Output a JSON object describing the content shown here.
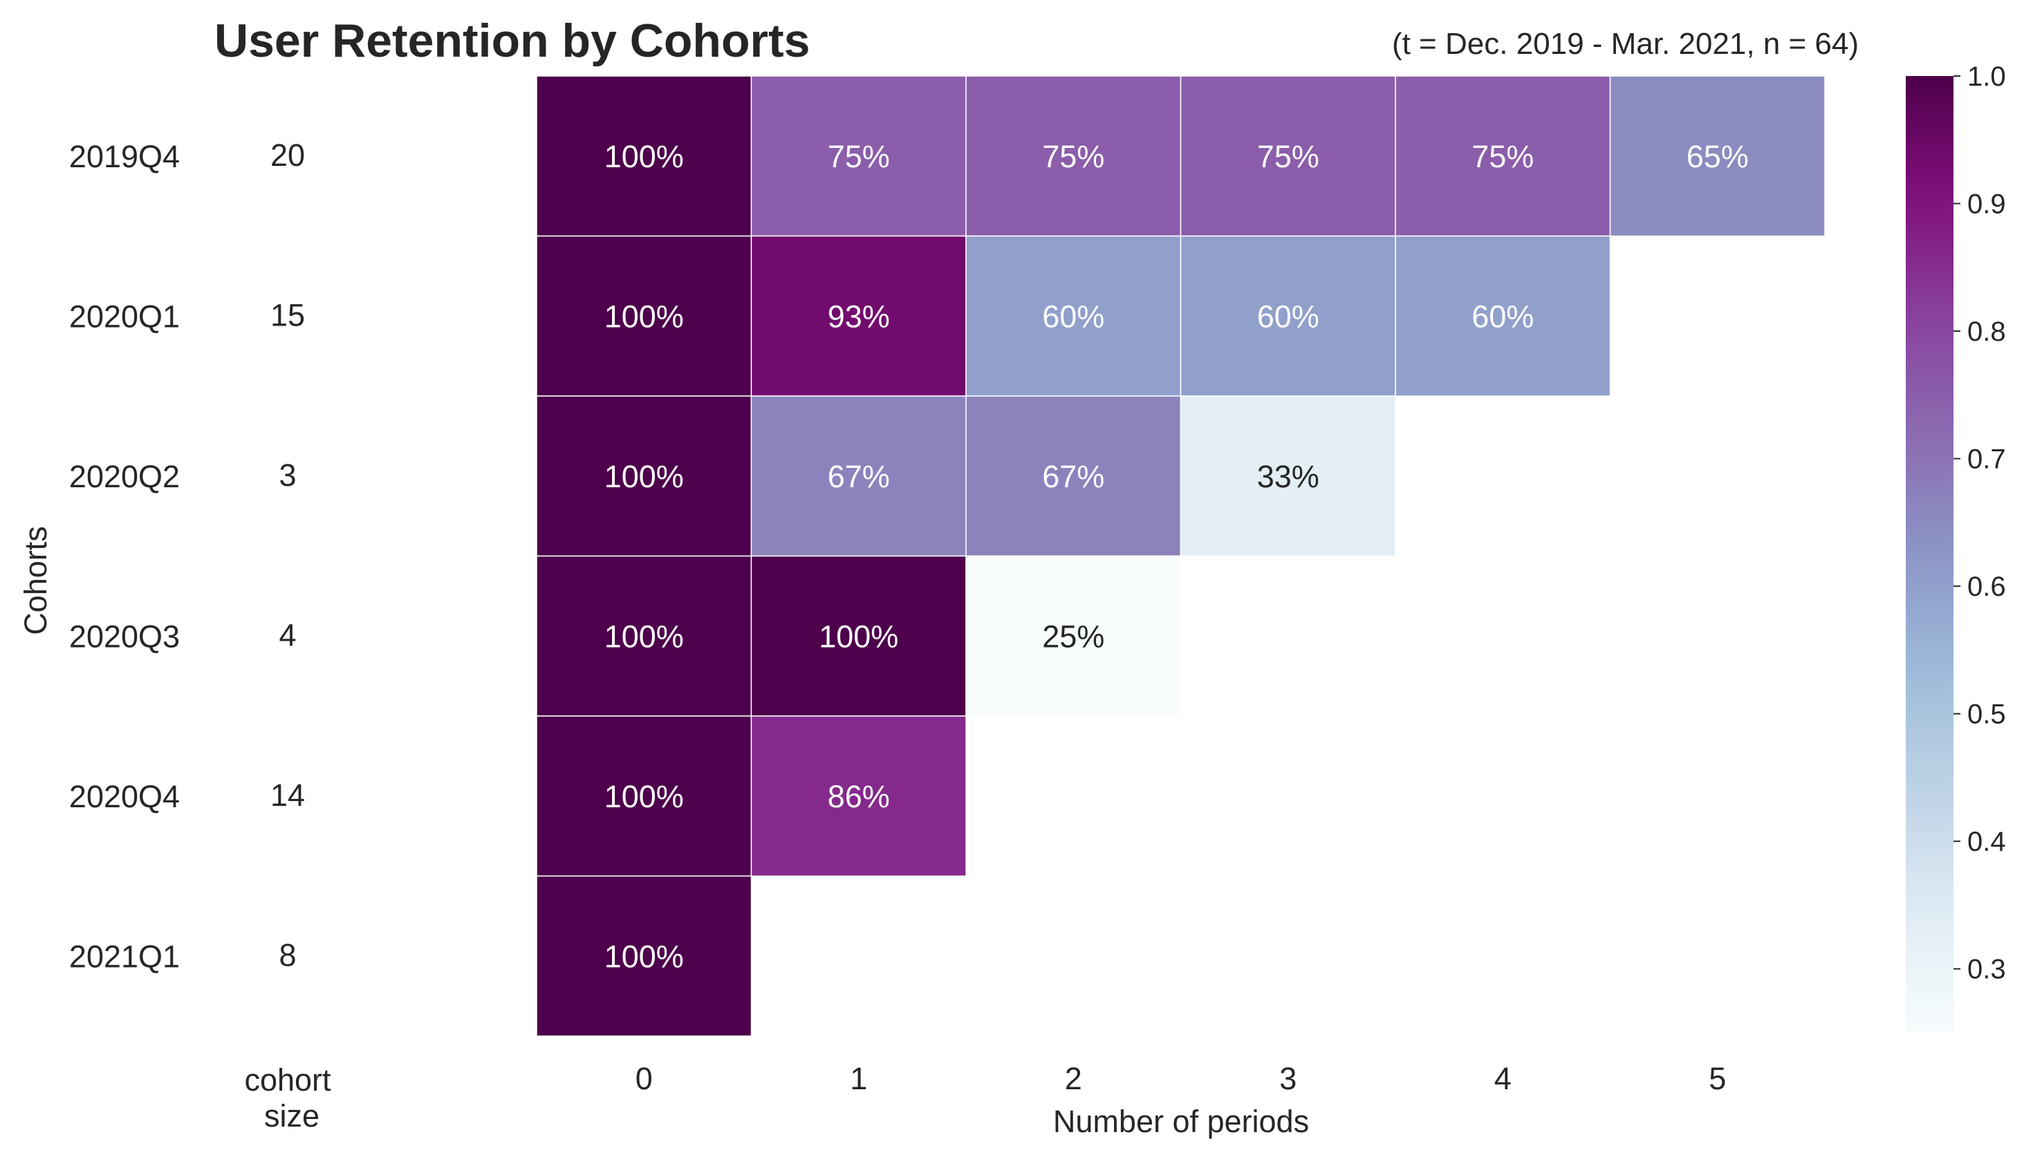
{
  "chart_data": {
    "type": "heatmap",
    "title": "User Retention by Cohorts",
    "subtitle": "(t = Dec. 2019 - Mar. 2021, n = 64)",
    "xlabel": "Number of periods",
    "ylabel": "Cohorts",
    "size_label_line1": "cohort",
    "size_label_line2": "size",
    "x_categories": [
      "0",
      "1",
      "2",
      "3",
      "4",
      "5"
    ],
    "cohorts": [
      "2019Q4",
      "2020Q1",
      "2020Q2",
      "2020Q3",
      "2020Q4",
      "2021Q1"
    ],
    "cohort_sizes": [
      "20",
      "15",
      "3",
      "4",
      "14",
      "8"
    ],
    "values": [
      [
        1.0,
        0.75,
        0.75,
        0.75,
        0.75,
        0.65
      ],
      [
        1.0,
        0.933,
        0.6,
        0.6,
        0.6,
        null
      ],
      [
        1.0,
        0.667,
        0.667,
        0.333,
        null,
        null
      ],
      [
        1.0,
        1.0,
        0.25,
        null,
        null,
        null
      ],
      [
        1.0,
        0.857,
        null,
        null,
        null,
        null
      ],
      [
        1.0,
        null,
        null,
        null,
        null,
        null
      ]
    ],
    "labels": [
      [
        "100%",
        "75%",
        "75%",
        "75%",
        "75%",
        "65%"
      ],
      [
        "100%",
        "93%",
        "60%",
        "60%",
        "60%",
        ""
      ],
      [
        "100%",
        "67%",
        "67%",
        "33%",
        "",
        ""
      ],
      [
        "100%",
        "100%",
        "25%",
        "",
        "",
        ""
      ],
      [
        "100%",
        "86%",
        "",
        "",
        "",
        ""
      ],
      [
        "100%",
        "",
        "",
        "",
        "",
        ""
      ]
    ],
    "colormap": "BuPu",
    "vmin": 0.25,
    "vmax": 1.0,
    "colorbar_ticks": [
      "0.3",
      "0.4",
      "0.5",
      "0.6",
      "0.7",
      "0.8",
      "0.9",
      "1.0"
    ],
    "colors": {
      "text_light": "#ffffff",
      "text_dark": "#262626",
      "cell_border": "#ffffff"
    }
  }
}
